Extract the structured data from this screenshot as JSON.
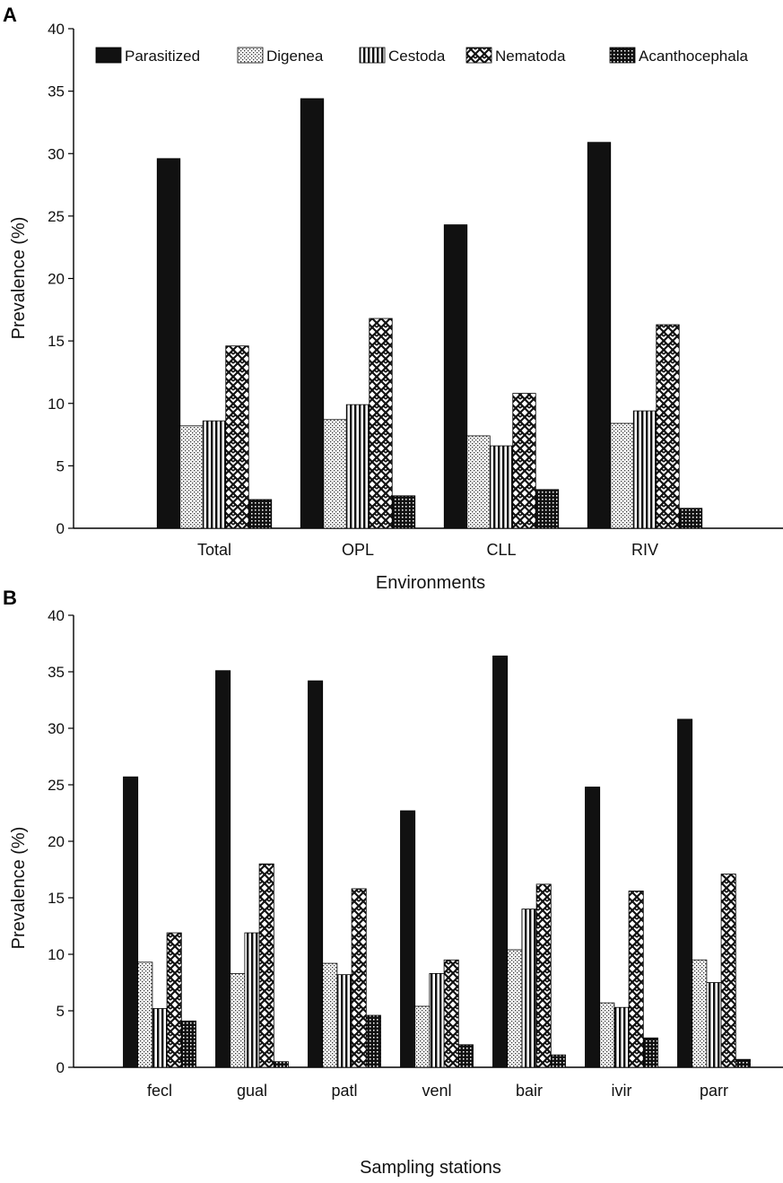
{
  "series_names": [
    "Parasitized",
    "Digenea",
    "Cestoda",
    "Nematoda",
    "Acanthocephala"
  ],
  "chart_data": [
    {
      "type": "bar",
      "panel": "A",
      "xlabel": "Environments",
      "ylabel": "Prevalence (%)",
      "ylim": [
        0,
        40
      ],
      "yticks": [
        0,
        5,
        10,
        15,
        20,
        25,
        30,
        35,
        40
      ],
      "legend": "top",
      "categories": [
        "Total",
        "OPL",
        "CLL",
        "RIV"
      ],
      "series": [
        {
          "name": "Parasitized",
          "values": [
            29.6,
            34.4,
            24.3,
            30.9
          ]
        },
        {
          "name": "Digenea",
          "values": [
            8.2,
            8.7,
            7.4,
            8.4
          ]
        },
        {
          "name": "Cestoda",
          "values": [
            8.6,
            9.9,
            6.6,
            9.4
          ]
        },
        {
          "name": "Nematoda",
          "values": [
            14.6,
            16.8,
            10.8,
            16.3
          ]
        },
        {
          "name": "Acanthocephala",
          "values": [
            2.3,
            2.6,
            3.1,
            1.6
          ]
        }
      ]
    },
    {
      "type": "bar",
      "panel": "B",
      "xlabel": "Sampling stations",
      "ylabel": "Prevalence (%)",
      "ylim": [
        0,
        40
      ],
      "yticks": [
        0,
        5,
        10,
        15,
        20,
        25,
        30,
        35,
        40
      ],
      "categories": [
        "fecl",
        "gual",
        "patl",
        "venl",
        "bair",
        "ivir",
        "parr"
      ],
      "series": [
        {
          "name": "Parasitized",
          "values": [
            25.7,
            35.1,
            34.2,
            22.7,
            36.4,
            24.8,
            30.8
          ]
        },
        {
          "name": "Digenea",
          "values": [
            9.3,
            8.3,
            9.2,
            5.4,
            10.4,
            5.7,
            9.5
          ]
        },
        {
          "name": "Cestoda",
          "values": [
            5.2,
            11.9,
            8.2,
            8.3,
            14.0,
            5.3,
            7.5
          ]
        },
        {
          "name": "Nematoda",
          "values": [
            11.9,
            18.0,
            15.8,
            9.5,
            16.2,
            15.6,
            17.1
          ]
        },
        {
          "name": "Acanthocephala",
          "values": [
            4.1,
            0.5,
            4.6,
            2.0,
            1.1,
            2.6,
            0.7
          ]
        }
      ]
    }
  ]
}
